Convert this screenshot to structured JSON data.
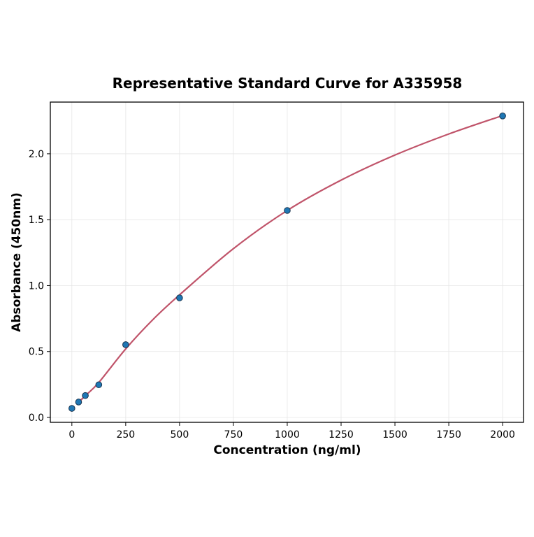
{
  "chart_data": {
    "type": "scatter",
    "title": "Representative Standard Curve for A335958",
    "xlabel": "Concentration (ng/ml)",
    "ylabel": "Absorbance (450nm)",
    "xlim": [
      -100,
      2097
    ],
    "ylim": [
      -0.037,
      2.392
    ],
    "xticks": [
      0,
      250,
      500,
      750,
      1000,
      1250,
      1500,
      1750,
      2000
    ],
    "yticks": [
      0.0,
      0.5,
      1.0,
      1.5,
      2.0
    ],
    "ytick_labels": [
      "0.0",
      "0.5",
      "1.0",
      "1.5",
      "2.0"
    ],
    "grid": true,
    "points": {
      "x": [
        0,
        31.25,
        62.5,
        125,
        250,
        500,
        1000,
        2000
      ],
      "y": [
        0.069,
        0.117,
        0.166,
        0.248,
        0.552,
        0.907,
        1.57,
        2.287
      ]
    },
    "fit_curve": {
      "x": [
        31.25,
        62.5,
        125,
        250,
        375,
        500,
        750,
        1000,
        1250,
        1500,
        1750,
        2000
      ],
      "y": [
        0.115,
        0.165,
        0.265,
        0.52,
        0.74,
        0.93,
        1.28,
        1.57,
        1.8,
        1.99,
        2.15,
        2.29
      ]
    },
    "colors": {
      "points": "#1f77b4",
      "point_edge": "#1a3550",
      "fit": "#c0546a",
      "grid": "#e6e6e6"
    }
  }
}
